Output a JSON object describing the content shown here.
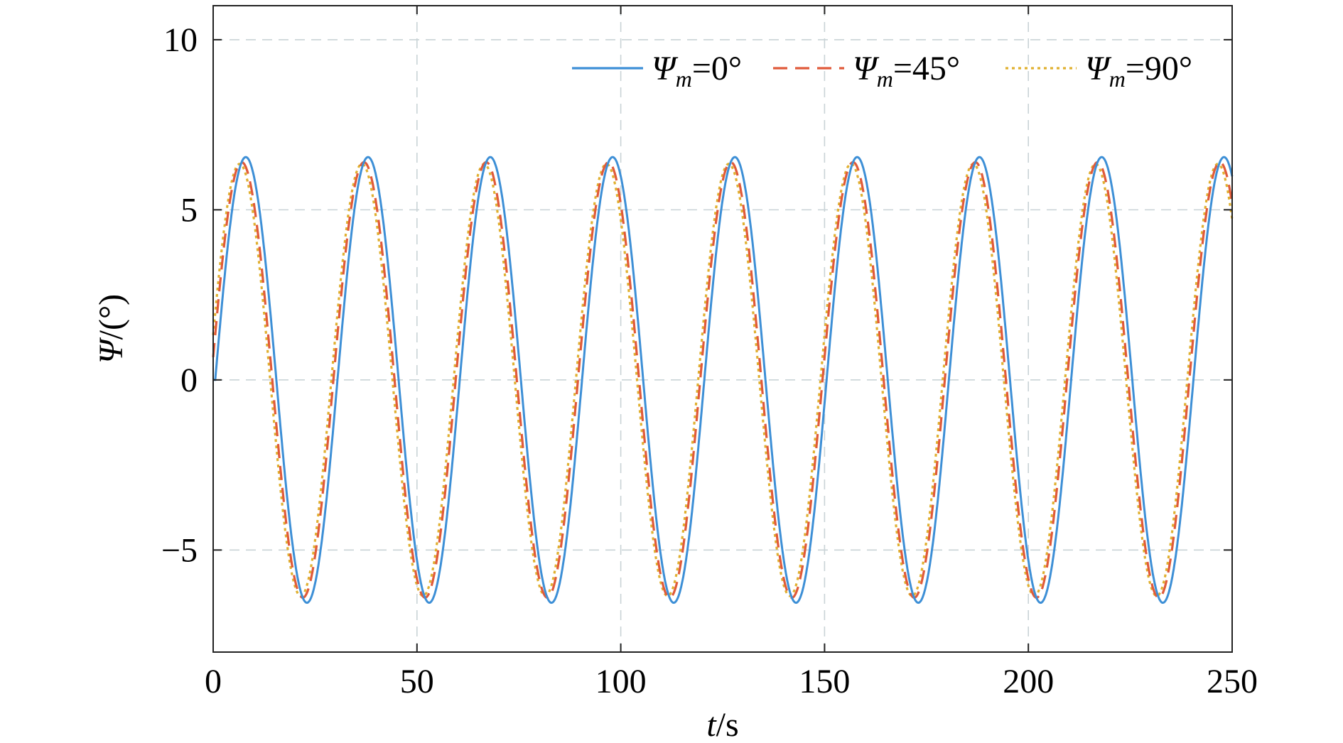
{
  "chart_data": {
    "type": "line",
    "title": "",
    "xlabel": "t/s",
    "xlabel_var": "t",
    "xlabel_unit": "/s",
    "ylabel": "Ψ/(°)",
    "ylabel_var": "Ψ",
    "ylabel_unit": "/(°)",
    "xlim": [
      0,
      250
    ],
    "ylim": [
      -8,
      11
    ],
    "xticks": [
      0,
      50,
      100,
      150,
      200,
      250
    ],
    "yticks": [
      -5,
      0,
      5,
      10
    ],
    "xtick_labels": [
      "0",
      "50",
      "100",
      "150",
      "200",
      "250"
    ],
    "ytick_labels": [
      "−5",
      "0",
      "5",
      "10"
    ],
    "grid": true,
    "legend_position": "top-right",
    "period": 30,
    "series": [
      {
        "name": "Ψm=0°",
        "legend_var": "Ψ",
        "legend_sub": "m",
        "legend_value": "=0°",
        "color": "#3d8fd6",
        "dash": "solid",
        "amplitude": 6.55,
        "peak_times": [
          8,
          38,
          68,
          98,
          128,
          158,
          188,
          218,
          248
        ],
        "trough_times": [
          23,
          53,
          83,
          113,
          143,
          173,
          203,
          233
        ]
      },
      {
        "name": "Ψm=45°",
        "legend_var": "Ψ",
        "legend_sub": "m",
        "legend_value": "=45°",
        "color": "#e05a3a",
        "dash": "dashed",
        "amplitude": 6.4,
        "peak_times": [
          7,
          37,
          67,
          97,
          127,
          157,
          187,
          217,
          247
        ],
        "trough_times": [
          22,
          52,
          82,
          112,
          142,
          172,
          202,
          232
        ]
      },
      {
        "name": "Ψm=90°",
        "legend_var": "Ψ",
        "legend_sub": "m",
        "legend_value": "=90°",
        "color": "#e0b030",
        "dash": "dotted",
        "amplitude": 6.35,
        "peak_times": [
          6.5,
          36.5,
          66.5,
          96.5,
          126.5,
          156.5,
          186.5,
          216.5,
          246.5
        ],
        "trough_times": [
          21.5,
          51.5,
          81.5,
          111.5,
          141.5,
          171.5,
          201.5,
          231.5
        ]
      }
    ]
  }
}
